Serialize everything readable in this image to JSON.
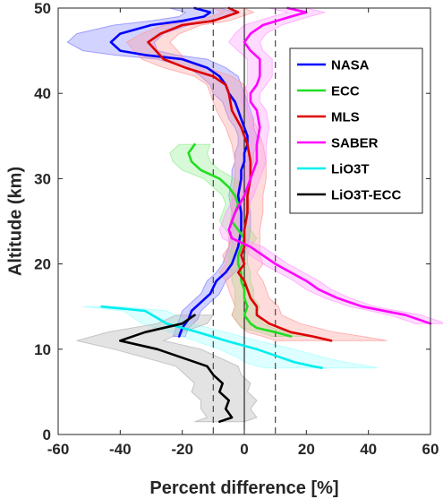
{
  "chart_data": {
    "type": "line",
    "title": "",
    "xlabel": "Percent difference [%]",
    "ylabel": "Altitude (km)",
    "xlim": [
      -60,
      60
    ],
    "ylim": [
      0,
      50
    ],
    "xticks": [
      -60,
      -40,
      -20,
      0,
      20,
      40,
      60
    ],
    "yticks": [
      0,
      10,
      20,
      30,
      40,
      50
    ],
    "grid": false,
    "legend_position": "top-right",
    "reference_lines": {
      "solid_x": [
        0
      ],
      "dashed_x": [
        -10,
        10
      ]
    },
    "series": [
      {
        "name": "NASA",
        "color": "#0000ff",
        "band_color": "#8080ff",
        "points": [
          [
            -21,
            11.5
          ],
          [
            -20,
            12.5
          ],
          [
            -18,
            13.5
          ],
          [
            -17,
            14.5
          ],
          [
            -14,
            15.5
          ],
          [
            -11,
            16.5
          ],
          [
            -9,
            18
          ],
          [
            -6,
            19
          ],
          [
            -4,
            20
          ],
          [
            -3,
            21
          ],
          [
            -2,
            22
          ],
          [
            -1,
            24
          ],
          [
            -1,
            26
          ],
          [
            -2,
            28
          ],
          [
            -1,
            30
          ],
          [
            -1,
            31
          ],
          [
            0,
            32
          ],
          [
            0,
            33
          ],
          [
            1,
            34
          ],
          [
            1,
            35
          ],
          [
            0,
            36
          ],
          [
            -1,
            37
          ],
          [
            -2,
            38
          ],
          [
            -3,
            39
          ],
          [
            -5,
            40
          ],
          [
            -6,
            41
          ],
          [
            -8,
            42
          ],
          [
            -12,
            43
          ],
          [
            -20,
            44
          ],
          [
            -32,
            44.5
          ],
          [
            -40,
            45
          ],
          [
            -43,
            46
          ],
          [
            -40,
            47
          ],
          [
            -30,
            48
          ],
          [
            -20,
            48.5
          ],
          [
            -13,
            49
          ],
          [
            -11,
            49.5
          ],
          [
            -16,
            50
          ]
        ],
        "spread": [
          2,
          2,
          3,
          3,
          3,
          3,
          3,
          3,
          3,
          3,
          3,
          3,
          3,
          3,
          3,
          3,
          3,
          3,
          3,
          3,
          3,
          4,
          4,
          4,
          5,
          5,
          6,
          6,
          8,
          10,
          12,
          14,
          14,
          12,
          10,
          8,
          8,
          8
        ]
      },
      {
        "name": "ECC",
        "color": "#22dd22",
        "band_color": "#90ee90",
        "points": [
          [
            15,
            11.5
          ],
          [
            10,
            12
          ],
          [
            4,
            12.5
          ],
          [
            2,
            13
          ],
          [
            0,
            14
          ],
          [
            1,
            15
          ],
          [
            0,
            16
          ],
          [
            0,
            17
          ],
          [
            -1,
            18
          ],
          [
            -1,
            19
          ],
          [
            -2,
            20
          ],
          [
            -2,
            21
          ],
          [
            -1,
            22
          ],
          [
            0,
            23
          ],
          [
            -2,
            24
          ],
          [
            -4,
            25
          ],
          [
            -3,
            26
          ],
          [
            -2,
            27
          ],
          [
            -3,
            28
          ],
          [
            -5,
            29
          ],
          [
            -8,
            30
          ],
          [
            -14,
            31
          ],
          [
            -17,
            32
          ],
          [
            -18,
            33
          ],
          [
            -16,
            34
          ]
        ],
        "spread": [
          6,
          5,
          5,
          4,
          4,
          4,
          3,
          3,
          3,
          3,
          3,
          3,
          3,
          4,
          4,
          4,
          4,
          4,
          4,
          5,
          5,
          6,
          6,
          6,
          5
        ]
      },
      {
        "name": "MLS",
        "color": "#dd0000",
        "band_color": "#ff9a9a",
        "points": [
          [
            28,
            11
          ],
          [
            22,
            11.5
          ],
          [
            15,
            12
          ],
          [
            8,
            13
          ],
          [
            4,
            14
          ],
          [
            4,
            15
          ],
          [
            2,
            16
          ],
          [
            1,
            17
          ],
          [
            0,
            18
          ],
          [
            -2,
            19
          ],
          [
            0,
            20
          ],
          [
            -1,
            21
          ],
          [
            0,
            22
          ],
          [
            0,
            24
          ],
          [
            1,
            26
          ],
          [
            1,
            28
          ],
          [
            2,
            30
          ],
          [
            2,
            32
          ],
          [
            1,
            34
          ],
          [
            -1,
            36
          ],
          [
            -4,
            38
          ],
          [
            -5,
            40
          ],
          [
            -6,
            41
          ],
          [
            -10,
            42
          ],
          [
            -19,
            43
          ],
          [
            -26,
            44
          ],
          [
            -31,
            46
          ],
          [
            -27,
            47
          ],
          [
            -20,
            48
          ],
          [
            -10,
            48.5
          ],
          [
            -6,
            49
          ],
          [
            -2,
            49.5
          ],
          [
            -5,
            50
          ]
        ],
        "spread": [
          18,
          16,
          14,
          10,
          8,
          7,
          6,
          6,
          6,
          6,
          6,
          6,
          5,
          5,
          5,
          5,
          5,
          5,
          5,
          5,
          5,
          6,
          6,
          6,
          7,
          7,
          7,
          6,
          6,
          5,
          5,
          5,
          5
        ]
      },
      {
        "name": "SABER",
        "color": "#ff00ff",
        "band_color": "#ff9aff",
        "points": [
          [
            60,
            13
          ],
          [
            52,
            14
          ],
          [
            38,
            15
          ],
          [
            30,
            16
          ],
          [
            24,
            17
          ],
          [
            20,
            18
          ],
          [
            15,
            19
          ],
          [
            10,
            20
          ],
          [
            6,
            21
          ],
          [
            2,
            22
          ],
          [
            -4,
            23
          ],
          [
            -5,
            24
          ],
          [
            -4,
            25
          ],
          [
            -3,
            26
          ],
          [
            0,
            28
          ],
          [
            2,
            30
          ],
          [
            4,
            32
          ],
          [
            4,
            34
          ],
          [
            5,
            36
          ],
          [
            4,
            38
          ],
          [
            2,
            39
          ],
          [
            2,
            40
          ],
          [
            4,
            41
          ],
          [
            5,
            42
          ],
          [
            5,
            44
          ],
          [
            2,
            45
          ],
          [
            0,
            46
          ],
          [
            2,
            47
          ],
          [
            6,
            48
          ],
          [
            15,
            49
          ],
          [
            20,
            49.5
          ],
          [
            14,
            50
          ]
        ],
        "spread": [
          5,
          5,
          4,
          4,
          4,
          4,
          4,
          4,
          4,
          4,
          3,
          3,
          3,
          3,
          3,
          3,
          3,
          3,
          3,
          3,
          3,
          3,
          3,
          4,
          4,
          4,
          5,
          5,
          6,
          6,
          6,
          6
        ]
      },
      {
        "name": "LiO3T",
        "color": "#00eeee",
        "band_color": "#a0ffff",
        "points": [
          [
            -46,
            15
          ],
          [
            -32,
            14.5
          ],
          [
            -25,
            13
          ],
          [
            -15,
            12
          ],
          [
            -6,
            11
          ],
          [
            4,
            10
          ],
          [
            12,
            9
          ],
          [
            16,
            8.5
          ],
          [
            22,
            8
          ],
          [
            25,
            7.8
          ]
        ],
        "spread": [
          6,
          7,
          8,
          9,
          10,
          12,
          14,
          16,
          18,
          18
        ]
      },
      {
        "name": "LiO3T-ECC",
        "color": "#000000",
        "band_color": "#b0b0b0",
        "points": [
          [
            -16,
            14
          ],
          [
            -20,
            13
          ],
          [
            -32,
            12
          ],
          [
            -40,
            11
          ],
          [
            -28,
            10
          ],
          [
            -20,
            9
          ],
          [
            -12,
            8
          ],
          [
            -10,
            7
          ],
          [
            -7,
            6
          ],
          [
            -8,
            5
          ],
          [
            -5,
            4
          ],
          [
            -6,
            3
          ],
          [
            -4,
            2
          ],
          [
            -8,
            1.5
          ]
        ],
        "spread": [
          6,
          8,
          12,
          14,
          14,
          12,
          10,
          9,
          9,
          9,
          9,
          8,
          8,
          8
        ]
      }
    ]
  }
}
